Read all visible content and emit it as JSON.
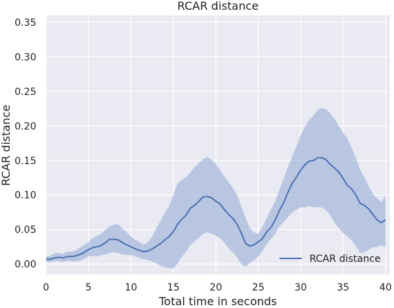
{
  "chart_data": {
    "type": "line",
    "title": "RCAR distance",
    "xlabel": "Total time in seconds",
    "ylabel": "RCAR distance",
    "xlim": [
      0,
      40.5
    ],
    "ylim": [
      -0.015,
      0.36
    ],
    "xticks": [
      0,
      5,
      10,
      15,
      20,
      25,
      30,
      35,
      40
    ],
    "xtick_labels": [
      "0",
      "5",
      "10",
      "15",
      "20",
      "25",
      "30",
      "35",
      "40"
    ],
    "yticks": [
      0.0,
      0.05,
      0.1,
      0.15,
      0.2,
      0.25,
      0.3,
      0.35
    ],
    "ytick_labels": [
      "0.00",
      "0.05",
      "0.10",
      "0.15",
      "0.20",
      "0.25",
      "0.30",
      "0.35"
    ],
    "grid": true,
    "legend_position": "bottom-right",
    "colors": {
      "background": "#eaeaf2",
      "grid": "#ffffff",
      "line": "#4c72b0",
      "band": "#a2b6dc"
    },
    "series": [
      {
        "name": "RCAR distance",
        "x": [
          0,
          0.5,
          1,
          1.5,
          2,
          2.5,
          3,
          3.5,
          4,
          4.5,
          5,
          5.5,
          6,
          6.5,
          7,
          7.5,
          8,
          8.5,
          9,
          9.5,
          10,
          10.5,
          11,
          11.5,
          12,
          12.5,
          13,
          13.5,
          14,
          14.5,
          15,
          15.5,
          16,
          16.5,
          17,
          17.5,
          18,
          18.5,
          19,
          19.5,
          20,
          20.5,
          21,
          21.5,
          22,
          22.5,
          23,
          23.5,
          24,
          24.5,
          25,
          25.5,
          26,
          26.5,
          27,
          27.5,
          28,
          28.5,
          29,
          29.5,
          30,
          30.5,
          31,
          31.5,
          32,
          32.5,
          33,
          33.5,
          34,
          34.5,
          35,
          35.5,
          36,
          36.5,
          37,
          37.5,
          38,
          38.5,
          39,
          39.5,
          40
        ],
        "y": [
          0.007,
          0.007,
          0.009,
          0.01,
          0.009,
          0.011,
          0.011,
          0.012,
          0.014,
          0.017,
          0.021,
          0.024,
          0.025,
          0.027,
          0.031,
          0.036,
          0.036,
          0.035,
          0.031,
          0.028,
          0.025,
          0.022,
          0.02,
          0.018,
          0.019,
          0.022,
          0.026,
          0.03,
          0.035,
          0.04,
          0.047,
          0.058,
          0.065,
          0.071,
          0.081,
          0.085,
          0.091,
          0.097,
          0.098,
          0.096,
          0.091,
          0.087,
          0.079,
          0.072,
          0.066,
          0.058,
          0.045,
          0.03,
          0.026,
          0.028,
          0.032,
          0.037,
          0.047,
          0.053,
          0.064,
          0.078,
          0.089,
          0.104,
          0.117,
          0.126,
          0.136,
          0.144,
          0.149,
          0.15,
          0.154,
          0.154,
          0.151,
          0.144,
          0.139,
          0.133,
          0.124,
          0.114,
          0.109,
          0.1,
          0.088,
          0.085,
          0.08,
          0.072,
          0.064,
          0.06,
          0.064
        ],
        "y_lower": [
          0.003,
          0.003,
          0.004,
          0.004,
          0.003,
          0.005,
          0.004,
          0.004,
          0.005,
          0.008,
          0.011,
          0.012,
          0.011,
          0.013,
          0.014,
          0.016,
          0.017,
          0.016,
          0.014,
          0.013,
          0.013,
          0.011,
          0.009,
          0.007,
          0.006,
          0.004,
          0.001,
          -0.002,
          -0.005,
          -0.006,
          -0.006,
          0.001,
          0.011,
          0.018,
          0.028,
          0.033,
          0.038,
          0.044,
          0.046,
          0.044,
          0.041,
          0.038,
          0.031,
          0.023,
          0.017,
          0.01,
          0.0,
          -0.004,
          0.002,
          0.006,
          0.011,
          0.019,
          0.029,
          0.036,
          0.044,
          0.055,
          0.061,
          0.068,
          0.075,
          0.079,
          0.082,
          0.082,
          0.084,
          0.082,
          0.083,
          0.082,
          0.078,
          0.07,
          0.06,
          0.052,
          0.045,
          0.04,
          0.034,
          0.026,
          0.016,
          0.017,
          0.021,
          0.024,
          0.025,
          0.027,
          0.025
        ],
        "y_upper": [
          0.011,
          0.012,
          0.016,
          0.016,
          0.015,
          0.018,
          0.018,
          0.02,
          0.024,
          0.028,
          0.032,
          0.038,
          0.041,
          0.044,
          0.05,
          0.055,
          0.057,
          0.058,
          0.051,
          0.046,
          0.04,
          0.035,
          0.032,
          0.028,
          0.032,
          0.04,
          0.052,
          0.063,
          0.075,
          0.084,
          0.1,
          0.117,
          0.122,
          0.126,
          0.133,
          0.14,
          0.146,
          0.152,
          0.155,
          0.151,
          0.145,
          0.136,
          0.127,
          0.119,
          0.11,
          0.1,
          0.084,
          0.067,
          0.052,
          0.046,
          0.044,
          0.054,
          0.067,
          0.079,
          0.091,
          0.108,
          0.124,
          0.14,
          0.156,
          0.171,
          0.186,
          0.199,
          0.209,
          0.215,
          0.223,
          0.226,
          0.224,
          0.218,
          0.21,
          0.2,
          0.19,
          0.182,
          0.168,
          0.154,
          0.137,
          0.126,
          0.113,
          0.102,
          0.095,
          0.09,
          0.1
        ]
      }
    ]
  }
}
